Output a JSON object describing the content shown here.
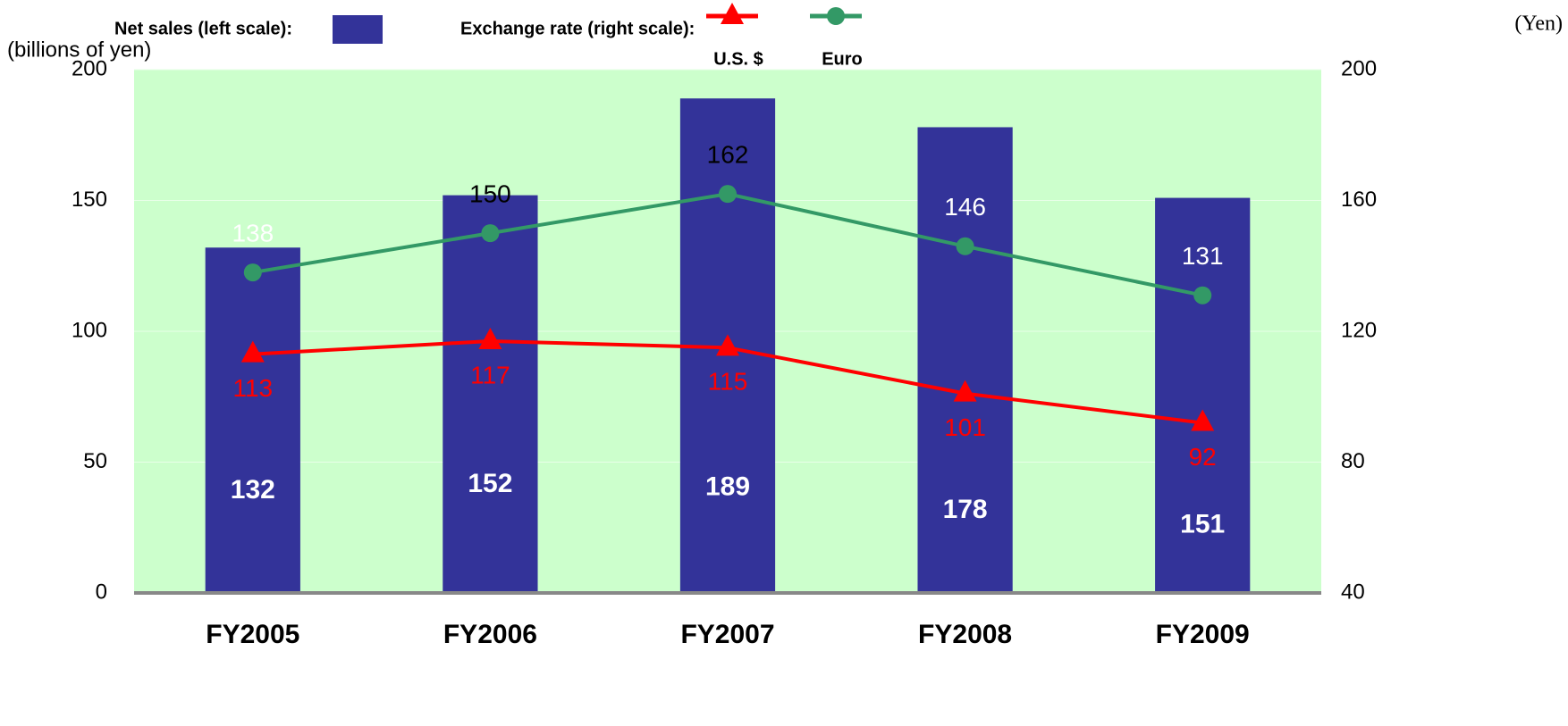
{
  "chart_data": {
    "type": "bar",
    "y_label": "(billions of yen)",
    "y2_label": "(Yen)",
    "legend_heading": "Exchange rate (right scale):",
    "categories": [
      "FY2005",
      "FY2006",
      "FY2007",
      "FY2008",
      "FY2009"
    ],
    "series": [
      {
        "name": "Net sales (left scale):",
        "type": "bar",
        "color": "#333399",
        "values": [
          132,
          152,
          189,
          178,
          151
        ]
      },
      {
        "name": "U.S. $",
        "type": "line",
        "marker": "triangle",
        "axis": "y2",
        "color": "#ff0000",
        "values": [
          113,
          117,
          115,
          101,
          92
        ]
      },
      {
        "name": "Euro",
        "type": "line",
        "marker": "circle",
        "axis": "y2",
        "color": "#339966",
        "values": [
          138,
          150,
          162,
          146,
          131
        ]
      }
    ],
    "ylim": [
      0,
      200
    ],
    "yticks": [
      0,
      50,
      100,
      150,
      200
    ],
    "y2lim": [
      40,
      200
    ],
    "y2ticks": [
      40,
      80,
      120,
      160,
      200
    ],
    "background": "#ccffcc",
    "grid": true
  }
}
